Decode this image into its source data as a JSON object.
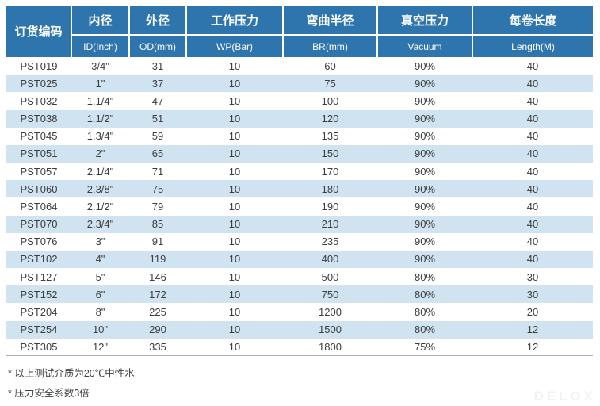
{
  "table": {
    "header": {
      "order_code": "订货编码",
      "groups": [
        {
          "zh": "内径",
          "en": "ID(Inch)"
        },
        {
          "zh": "外径",
          "en": "OD(mm)"
        },
        {
          "zh": "工作压力",
          "en": "WP(Bar)"
        },
        {
          "zh": "弯曲半径",
          "en": "BR(mm)"
        },
        {
          "zh": "真空压力",
          "en": "Vacuum"
        },
        {
          "zh": "每卷长度",
          "en": "Length(M)"
        }
      ]
    },
    "rows": [
      {
        "code": "PST019",
        "id_inch": "3/4\"",
        "od_mm": "31",
        "wp_bar": "10",
        "br_mm": "60",
        "vacuum": "90%",
        "length_m": "40"
      },
      {
        "code": "PST025",
        "id_inch": "1\"",
        "od_mm": "37",
        "wp_bar": "10",
        "br_mm": "75",
        "vacuum": "90%",
        "length_m": "40"
      },
      {
        "code": "PST032",
        "id_inch": "1.1/4\"",
        "od_mm": "47",
        "wp_bar": "10",
        "br_mm": "100",
        "vacuum": "90%",
        "length_m": "40"
      },
      {
        "code": "PST038",
        "id_inch": "1.1/2\"",
        "od_mm": "51",
        "wp_bar": "10",
        "br_mm": "120",
        "vacuum": "90%",
        "length_m": "40"
      },
      {
        "code": "PST045",
        "id_inch": "1.3/4\"",
        "od_mm": "59",
        "wp_bar": "10",
        "br_mm": "135",
        "vacuum": "90%",
        "length_m": "40"
      },
      {
        "code": "PST051",
        "id_inch": "2\"",
        "od_mm": "65",
        "wp_bar": "10",
        "br_mm": "150",
        "vacuum": "90%",
        "length_m": "40"
      },
      {
        "code": "PST057",
        "id_inch": "2.1/4\"",
        "od_mm": "71",
        "wp_bar": "10",
        "br_mm": "170",
        "vacuum": "90%",
        "length_m": "40"
      },
      {
        "code": "PST060",
        "id_inch": "2.3/8\"",
        "od_mm": "75",
        "wp_bar": "10",
        "br_mm": "180",
        "vacuum": "90%",
        "length_m": "40"
      },
      {
        "code": "PST064",
        "id_inch": "2.1/2\"",
        "od_mm": "79",
        "wp_bar": "10",
        "br_mm": "190",
        "vacuum": "90%",
        "length_m": "40"
      },
      {
        "code": "PST070",
        "id_inch": "2.3/4\"",
        "od_mm": "85",
        "wp_bar": "10",
        "br_mm": "210",
        "vacuum": "90%",
        "length_m": "40"
      },
      {
        "code": "PST076",
        "id_inch": "3\"",
        "od_mm": "91",
        "wp_bar": "10",
        "br_mm": "235",
        "vacuum": "90%",
        "length_m": "40"
      },
      {
        "code": "PST102",
        "id_inch": "4\"",
        "od_mm": "119",
        "wp_bar": "10",
        "br_mm": "400",
        "vacuum": "90%",
        "length_m": "40"
      },
      {
        "code": "PST127",
        "id_inch": "5\"",
        "od_mm": "146",
        "wp_bar": "10",
        "br_mm": "500",
        "vacuum": "80%",
        "length_m": "30"
      },
      {
        "code": "PST152",
        "id_inch": "6\"",
        "od_mm": "172",
        "wp_bar": "10",
        "br_mm": "750",
        "vacuum": "80%",
        "length_m": "30"
      },
      {
        "code": "PST204",
        "id_inch": "8\"",
        "od_mm": "225",
        "wp_bar": "10",
        "br_mm": "1200",
        "vacuum": "80%",
        "length_m": "20"
      },
      {
        "code": "PST254",
        "id_inch": "10\"",
        "od_mm": "290",
        "wp_bar": "10",
        "br_mm": "1500",
        "vacuum": "80%",
        "length_m": "12"
      },
      {
        "code": "PST305",
        "id_inch": "12\"",
        "od_mm": "335",
        "wp_bar": "10",
        "br_mm": "1800",
        "vacuum": "75%",
        "length_m": "12"
      }
    ]
  },
  "footnotes": [
    "* 以上测试介质为20℃中性水",
    "* 压力安全系数3倍"
  ],
  "watermark": "DELOX",
  "colors": {
    "header_bg": "#2E75AD",
    "header_text": "#FFFFFF",
    "row_alt_bg": "#CFE3F1",
    "row_text": "#3D3D3D",
    "footnote_text": "#404040",
    "table_bottom_border": "#ADADAD",
    "watermark_color": "#F2F2F2"
  }
}
